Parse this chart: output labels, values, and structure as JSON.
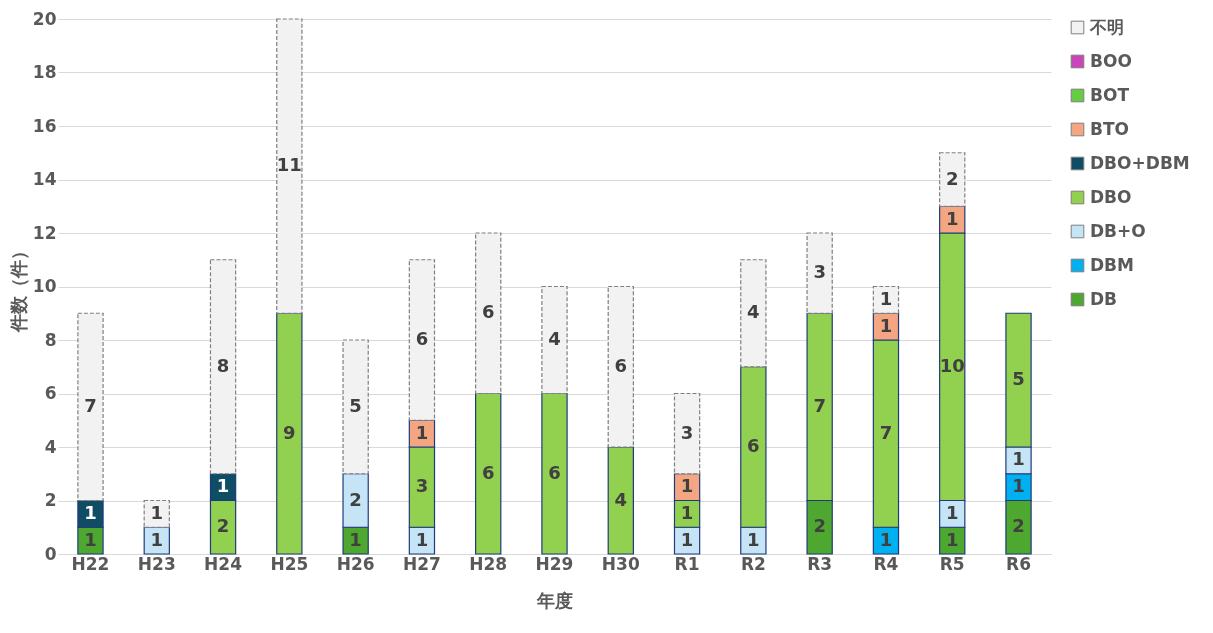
{
  "chart_data": {
    "type": "bar",
    "stacked": true,
    "xlabel": "年度",
    "ylabel": "件数（件）",
    "categories": [
      "H22",
      "H23",
      "H24",
      "H25",
      "H26",
      "H27",
      "H28",
      "H29",
      "H30",
      "R1",
      "R2",
      "R3",
      "R4",
      "R5",
      "R6"
    ],
    "ylim": [
      0,
      20
    ],
    "yticks": [
      0,
      2,
      4,
      6,
      8,
      10,
      12,
      14,
      16,
      18,
      20
    ],
    "grid": "y",
    "legend": "right",
    "data_labels": true,
    "series": [
      {
        "name": "DB",
        "color": "#4ea72e",
        "values": [
          1,
          null,
          null,
          null,
          1,
          null,
          null,
          null,
          null,
          null,
          null,
          2,
          null,
          1,
          2
        ]
      },
      {
        "name": "DBM",
        "color": "#00b0f0",
        "values": [
          null,
          null,
          null,
          null,
          null,
          null,
          null,
          null,
          null,
          null,
          null,
          null,
          1,
          null,
          1
        ]
      },
      {
        "name": "DB+O",
        "color": "#c5e5f7",
        "values": [
          null,
          1,
          null,
          null,
          2,
          1,
          null,
          null,
          null,
          1,
          1,
          null,
          null,
          1,
          1
        ]
      },
      {
        "name": "DBO",
        "color": "#92d050",
        "values": [
          null,
          null,
          2,
          9,
          null,
          3,
          6,
          6,
          4,
          1,
          6,
          7,
          7,
          10,
          5
        ]
      },
      {
        "name": "DBO+DBM",
        "color": "#0e4d64",
        "values": [
          1,
          null,
          1,
          null,
          null,
          null,
          null,
          null,
          null,
          null,
          null,
          null,
          null,
          null,
          null
        ]
      },
      {
        "name": "BTO",
        "color": "#f4a683",
        "values": [
          null,
          null,
          null,
          null,
          null,
          1,
          null,
          null,
          null,
          1,
          null,
          null,
          1,
          1,
          null
        ]
      },
      {
        "name": "BOT",
        "color": "#66cc44",
        "values": [
          null,
          null,
          null,
          null,
          null,
          null,
          null,
          null,
          null,
          null,
          null,
          null,
          null,
          null,
          null
        ]
      },
      {
        "name": "BOO",
        "color": "#cc44bb",
        "values": [
          null,
          null,
          null,
          null,
          null,
          null,
          null,
          null,
          null,
          null,
          null,
          null,
          null,
          null,
          null
        ]
      },
      {
        "name": "不明",
        "color": "#f2f2f2",
        "line_style": "dashed",
        "values": [
          7,
          1,
          8,
          11,
          5,
          6,
          6,
          4,
          6,
          3,
          4,
          3,
          1,
          2,
          null
        ]
      }
    ]
  }
}
